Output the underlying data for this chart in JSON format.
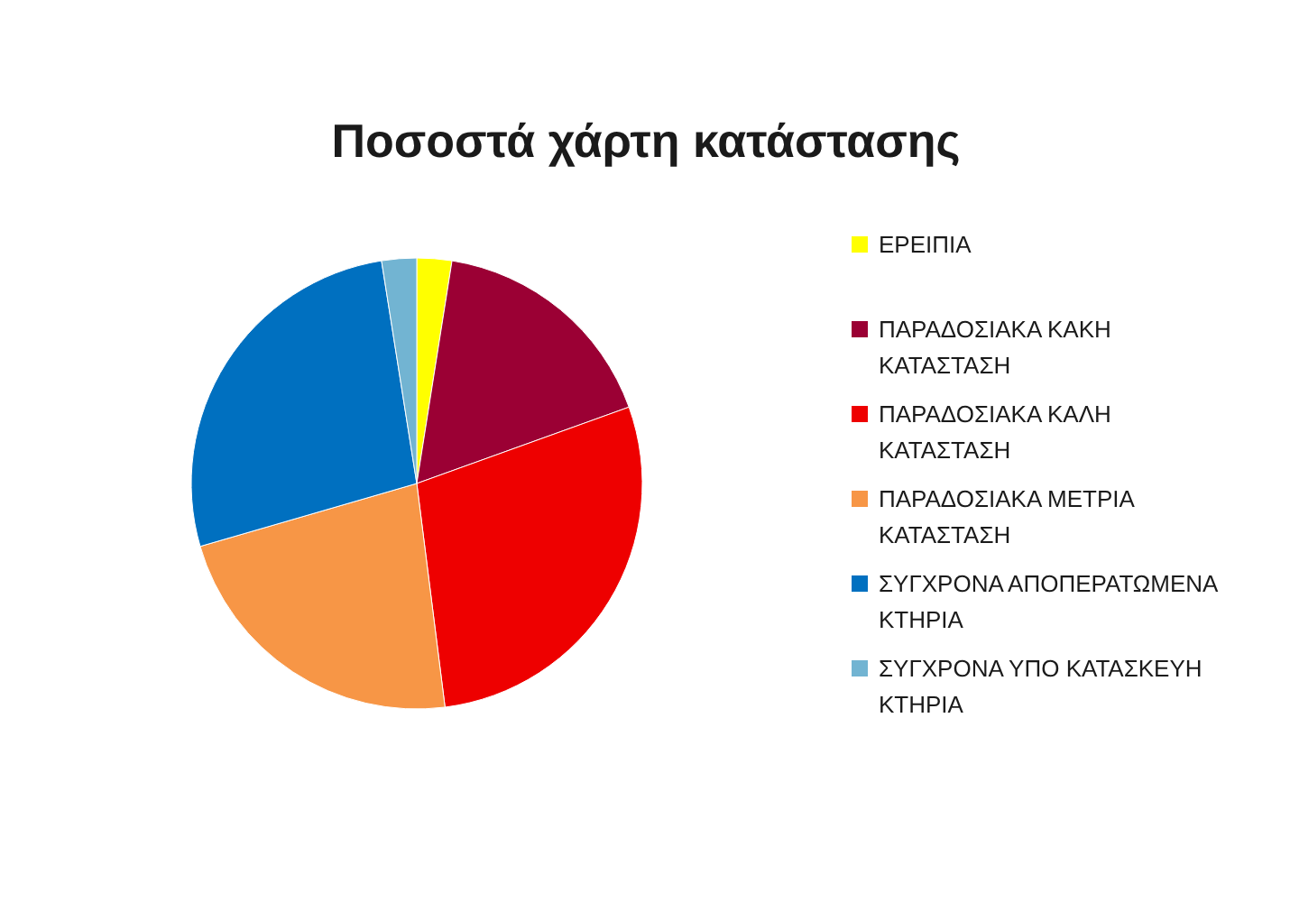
{
  "chart_data": {
    "type": "pie",
    "title": "Ποσοστά χάρτη κατάστασης",
    "categories": [
      "ΕΡΕΙΠΙΑ",
      "ΠΑΡΑΔΟΣΙΑΚΑ ΚΑΚΗ ΚΑΤΑΣΤΑΣΗ",
      "ΠΑΡΑΔΟΣΙΑΚΑ ΚΑΛΗ ΚΑΤΑΣΤΑΣΗ",
      "ΠΑΡΑΔΟΣΙΑΚΑ ΜΕΤΡΙΑ ΚΑΤΑΣΤΑΣΗ",
      "ΣΥΓΧΡΟΝΑ ΑΠΟΠΕΡΑΤΩΜΕΝΑ ΚΤΗΡΙΑ",
      "ΣΥΓΧΡΟΝΑ ΥΠΟ ΚΑΤΑΣΚΕΥΗ ΚΤΗΡΙΑ"
    ],
    "values": [
      2.5,
      17,
      28.5,
      22.5,
      27,
      2.5
    ],
    "colors": [
      "#ffff00",
      "#9b0034",
      "#ee0000",
      "#f79646",
      "#0070c0",
      "#72b4d2"
    ],
    "legend": "right"
  }
}
